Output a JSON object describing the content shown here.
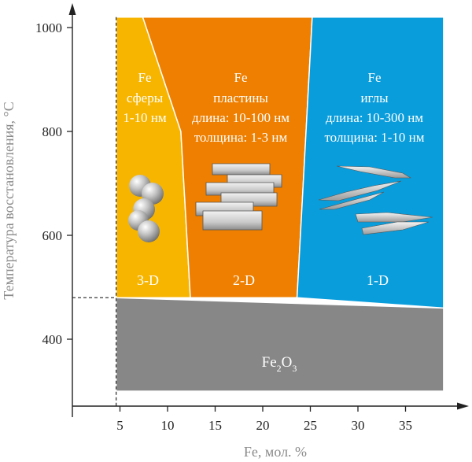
{
  "chart_data": {
    "type": "phase-diagram",
    "xlabel": "Fe, мол. %",
    "ylabel": "Температура восстановления, °C",
    "xlim": [
      0,
      40
    ],
    "ylim": [
      300,
      1020
    ],
    "x_ticks": [
      "5",
      "10",
      "15",
      "20",
      "25",
      "30",
      "35"
    ],
    "y_ticks": [
      "400",
      "600",
      "800",
      "1000"
    ],
    "reference_lines": {
      "x": 4.6,
      "y": 480
    },
    "regions": [
      {
        "id": "3d",
        "color": "#f7b500",
        "title": "Fe",
        "lines": [
          "сферы",
          "1-10 нм"
        ],
        "dimension": "3-D",
        "boundary": [
          [
            4.6,
            1020
          ],
          [
            7.4,
            1020
          ],
          [
            11.4,
            800
          ],
          [
            12.4,
            480
          ],
          [
            4.6,
            480
          ]
        ]
      },
      {
        "id": "2d",
        "color": "#ee7f00",
        "title": "Fe",
        "lines": [
          "пластины",
          "длина: 10-100 нм",
          "толщина: 1-3 нм"
        ],
        "dimension": "2-D",
        "boundary": [
          [
            7.4,
            1020
          ],
          [
            25.2,
            1020
          ],
          [
            23.6,
            480
          ],
          [
            12.4,
            480
          ],
          [
            11.4,
            800
          ]
        ]
      },
      {
        "id": "1d",
        "color": "#0a9ddc",
        "title": "Fe",
        "lines": [
          "иглы",
          "длина: 10-300 нм",
          "толщина: 1-10 нм"
        ],
        "dimension": "1-D",
        "boundary": [
          [
            25.2,
            1020
          ],
          [
            39,
            1020
          ],
          [
            39,
            460
          ],
          [
            23.6,
            480
          ]
        ]
      },
      {
        "id": "oxide",
        "color": "#878787",
        "label_main": "Fe",
        "label_sub1": "2",
        "label_mid": "O",
        "label_sub2": "3",
        "boundary": [
          [
            4.6,
            480
          ],
          [
            39,
            460
          ],
          [
            39,
            300
          ],
          [
            4.6,
            300
          ]
        ]
      }
    ]
  }
}
